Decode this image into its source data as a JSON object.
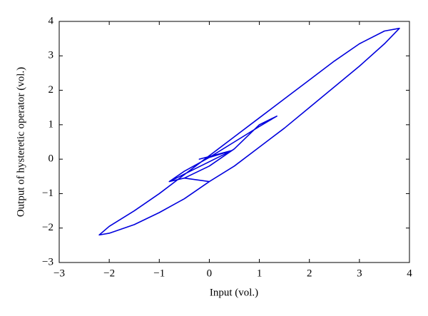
{
  "chart_data": {
    "type": "line",
    "x_label": "Input (vol.)",
    "y_label": "Output of hysteretic operator (vol.)",
    "x": [
      0,
      0.45,
      -0.2,
      0.45,
      -0.8,
      -0.5,
      0,
      0.5,
      1,
      1.35,
      1,
      0.5,
      0,
      -0.5,
      -0.8,
      -0.5,
      0,
      0.5,
      1,
      1.5,
      2,
      2.5,
      3,
      3.5,
      3.8,
      3.5,
      3,
      2.5,
      2,
      1.5,
      1,
      0.5,
      0,
      -0.5,
      -1,
      -1.5,
      -2,
      -2.2,
      -2.0,
      -1.5,
      -1,
      -0.5,
      0
    ],
    "series": [
      {
        "color": "#0000dd",
        "values": [
          0.05,
          0.25,
          0.0,
          0.25,
          -0.65,
          -0.35,
          0.05,
          0.5,
          0.95,
          1.25,
          1.0,
          0.3,
          -0.2,
          -0.55,
          -0.65,
          -0.55,
          -0.65,
          -0.2,
          0.35,
          0.9,
          1.5,
          2.1,
          2.7,
          3.35,
          3.8,
          3.72,
          3.35,
          2.85,
          2.3,
          1.75,
          1.2,
          0.65,
          0.1,
          -0.45,
          -1.0,
          -1.5,
          -1.95,
          -2.2,
          -2.15,
          -1.9,
          -1.55,
          -1.15,
          -0.65
        ]
      }
    ],
    "xlim": [
      -3,
      4
    ],
    "ylim": [
      -3,
      4
    ],
    "xticks": [
      {
        "value": -3,
        "label": "−3"
      },
      {
        "value": -2,
        "label": "−2"
      },
      {
        "value": -1,
        "label": "−1"
      },
      0,
      1,
      2,
      3,
      4
    ],
    "yticks": [
      {
        "value": -3,
        "label": "−3"
      },
      {
        "value": -2,
        "label": "−2"
      },
      {
        "value": -1,
        "label": "−1"
      },
      0,
      1,
      2,
      3,
      4
    ],
    "grid": false
  }
}
